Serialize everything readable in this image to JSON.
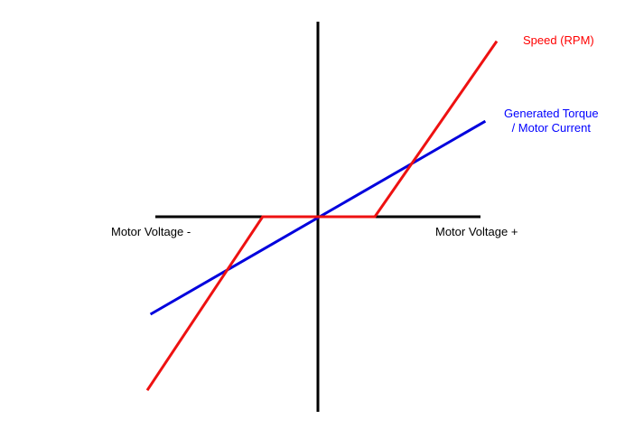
{
  "colors": {
    "axis": "#000000",
    "speed": "#ee1111",
    "torque": "#0000dd",
    "speed_label": "#ff0000",
    "torque_label": "#0000ff"
  },
  "chart_data": {
    "type": "line",
    "title": "",
    "xlabel_negative": "Motor Voltage -",
    "xlabel_positive": "Motor Voltage +",
    "ylabel": "",
    "xlim": [
      -1.0,
      1.0
    ],
    "ylim": [
      -1.0,
      1.0
    ],
    "grid": false,
    "legend": "inline labels at series ends",
    "series": [
      {
        "name": "Speed (RPM)",
        "name_lines": [
          "Speed (RPM)"
        ],
        "color": "#ee1111",
        "x": [
          -1.05,
          -0.34,
          0.35,
          1.1
        ],
        "y": [
          -0.89,
          0.0,
          0.0,
          0.9
        ]
      },
      {
        "name": "Generated Torque / Motor Current",
        "name_lines": [
          "Generated Torque",
          "/ Motor Current"
        ],
        "color": "#0000dd",
        "x": [
          -1.03,
          1.03
        ],
        "y": [
          -0.5,
          0.49
        ]
      }
    ]
  }
}
